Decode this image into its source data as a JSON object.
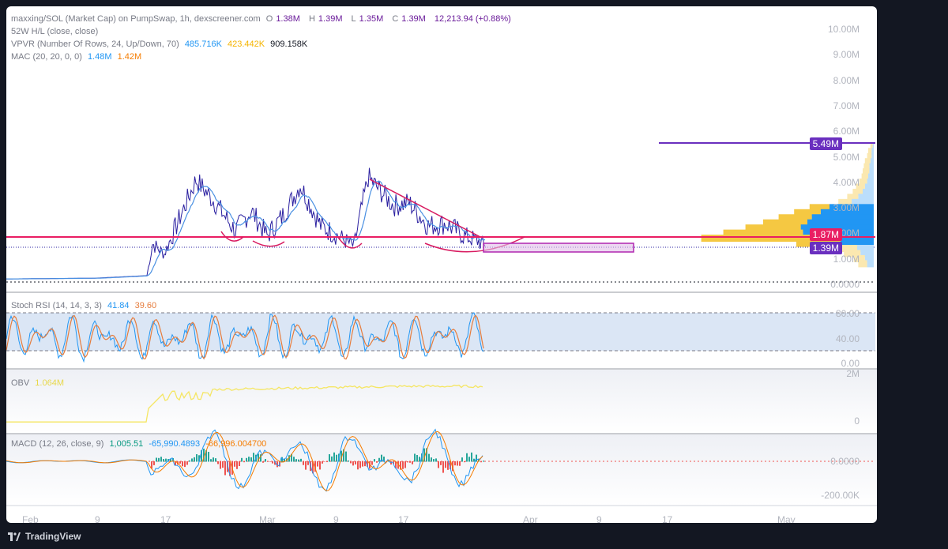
{
  "main_legend": {
    "line1_title": "maxxing/SOL (Market Cap) on PumpSwap, 1h, dexscreener.com",
    "open_label": "O",
    "open": "1.38M",
    "high_label": "H",
    "high": "1.39M",
    "low_label": "L",
    "low": "1.35M",
    "close_label": "C",
    "close": "1.39M",
    "change": "12,213.94 (+0.88%)",
    "line2": "52W H/L (close, close)",
    "line3_name": "VPVR (Number Of Rows, 24, Up/Down, 70)",
    "vp_up": "485.716K",
    "vp_down": "423.442K",
    "vp_total": "909.158K",
    "line4_name": "MAC (20, 20, 0, 0)",
    "mac_upper": "1.48M",
    "mac_lower": "1.42M"
  },
  "stoch_legend": {
    "name": "Stoch RSI (14, 14, 3, 3)",
    "k": "41.84",
    "d": "39.60"
  },
  "obv_legend": {
    "name": "OBV",
    "value": "1.064M"
  },
  "macd_legend": {
    "name": "MACD (12, 26, close, 9)",
    "hist": "1,005.51",
    "macd": "-65,990.4893",
    "signal": "-66,996.004700"
  },
  "price_axis": [
    "10.00M",
    "9.00M",
    "8.00M",
    "7.00M",
    "6.00M",
    "5.00M",
    "4.00M",
    "3.00M",
    "2.00M",
    "1.00M",
    "0.0000"
  ],
  "stoch_axis": [
    "80.00",
    "40.00",
    "0.00"
  ],
  "obv_axis": [
    "2M",
    "0"
  ],
  "macd_axis": [
    "0.0000",
    "-200.00K"
  ],
  "price_tags": [
    {
      "label": "5.49M",
      "color": "#6a2fbf"
    },
    {
      "label": "1.87M",
      "color": "#e91e63"
    },
    {
      "label": "1.39M",
      "color": "#6a2fbf"
    }
  ],
  "date_axis": [
    "Feb",
    "9",
    "17",
    "Mar",
    "9",
    "17",
    "Apr",
    "9",
    "17",
    "May"
  ],
  "footer": {
    "brand": "TradingView"
  },
  "colors": {
    "price_line": "#2a1fa0",
    "ma": "#4a90e2",
    "stoch_k": "#2196f3",
    "stoch_d": "#e67c3c",
    "obv": "#f5e663",
    "resistance": "#e91e63",
    "zone": "#b026b0"
  },
  "chart_data": [
    {
      "type": "line",
      "name": "Market Cap",
      "x": [
        "Feb 1",
        "Feb 9",
        "Feb 14",
        "Feb 15",
        "Feb 17",
        "Feb 20",
        "Feb 22",
        "Feb 24",
        "Feb 26",
        "Feb 28",
        "Mar 2",
        "Mar 4",
        "Mar 6",
        "Mar 8",
        "Mar 10",
        "Mar 12",
        "Mar 14",
        "Mar 16",
        "Mar 18",
        "Mar 20",
        "Mar 22",
        "Mar 24",
        "Mar 26"
      ],
      "values": [
        0.12,
        0.15,
        0.25,
        1.5,
        1.1,
        4.0,
        3.2,
        2.0,
        2.8,
        1.8,
        2.6,
        3.8,
        2.2,
        1.8,
        1.4,
        4.1,
        3.0,
        3.1,
        2.2,
        2.3,
        1.8,
        1.6,
        1.39
      ],
      "ylim": [
        0,
        10
      ],
      "yunit": "M"
    },
    {
      "type": "bar",
      "name": "VPVR",
      "rows": [
        5.3,
        5.1,
        4.9,
        4.7,
        4.5,
        4.3,
        4.1,
        3.9,
        3.7,
        3.5,
        3.3,
        3.1,
        2.9,
        2.7,
        2.5,
        2.3,
        2.1,
        1.9,
        1.7,
        1.5,
        1.3,
        1.1,
        0.9,
        0.7
      ],
      "up": [
        2,
        3,
        4,
        5,
        5,
        6,
        6,
        7,
        8,
        9,
        10,
        12,
        18,
        24,
        30,
        40,
        50,
        72,
        100,
        40,
        20,
        15,
        10,
        8
      ],
      "down": [
        1,
        2,
        2,
        3,
        4,
        4,
        5,
        6,
        8,
        10,
        14,
        20,
        40,
        48,
        56,
        60,
        66,
        64,
        56,
        30,
        15,
        12,
        8,
        6
      ]
    },
    {
      "type": "line",
      "name": "Stoch RSI",
      "k": 41.84,
      "d": 39.6,
      "ylim": [
        0,
        100
      ],
      "bands": [
        20,
        80
      ]
    },
    {
      "type": "line",
      "name": "OBV",
      "value": 1.064,
      "ylim": [
        0,
        2
      ],
      "yunit": "M"
    },
    {
      "type": "bar",
      "name": "MACD",
      "hist": 1005.51,
      "macd": -65990.4893,
      "signal": -66996.0047,
      "ylim": [
        -250000,
        100000
      ]
    }
  ]
}
